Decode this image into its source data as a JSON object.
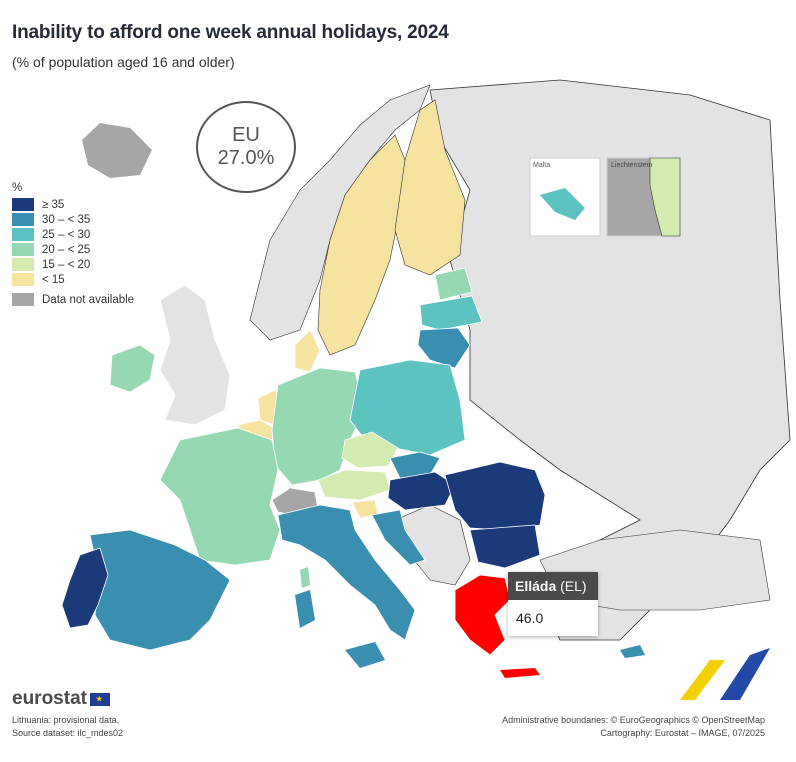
{
  "header": {
    "title": "Inability to afford one week annual holidays, 2024",
    "subtitle": "(% of population aged 16 and older)"
  },
  "eu": {
    "label": "EU",
    "value": "27.0%"
  },
  "legend": {
    "title": "%",
    "items": [
      {
        "label": "≥ 35",
        "color": "#1b3a7a"
      },
      {
        "label": "30 – < 35",
        "color": "#3a8fb0"
      },
      {
        "label": "25 – < 30",
        "color": "#5cc3c0"
      },
      {
        "label": "20 – < 25",
        "color": "#95d8b2"
      },
      {
        "label": "15 – < 20",
        "color": "#d3eab0"
      },
      {
        "label": "< 15",
        "color": "#f7e3a0"
      }
    ],
    "not_available": {
      "label": "Data not available",
      "color": "#a6a6a6"
    }
  },
  "insets": {
    "malta": "Malta",
    "liechtenstein": "Liechtenstein"
  },
  "tooltip": {
    "country": "Elláda",
    "code": "(EL)",
    "value": "46.0",
    "highlight_color": "#ff0000"
  },
  "footer": {
    "logo": "eurostat",
    "note": "Lithuania: provisional data.",
    "source": "Source dataset: ilc_mdes02",
    "boundaries": "Administrative boundaries: © EuroGeographics © OpenStreetMap",
    "cartography": "Cartography: Eurostat – IMAGE, 07/2025"
  }
}
